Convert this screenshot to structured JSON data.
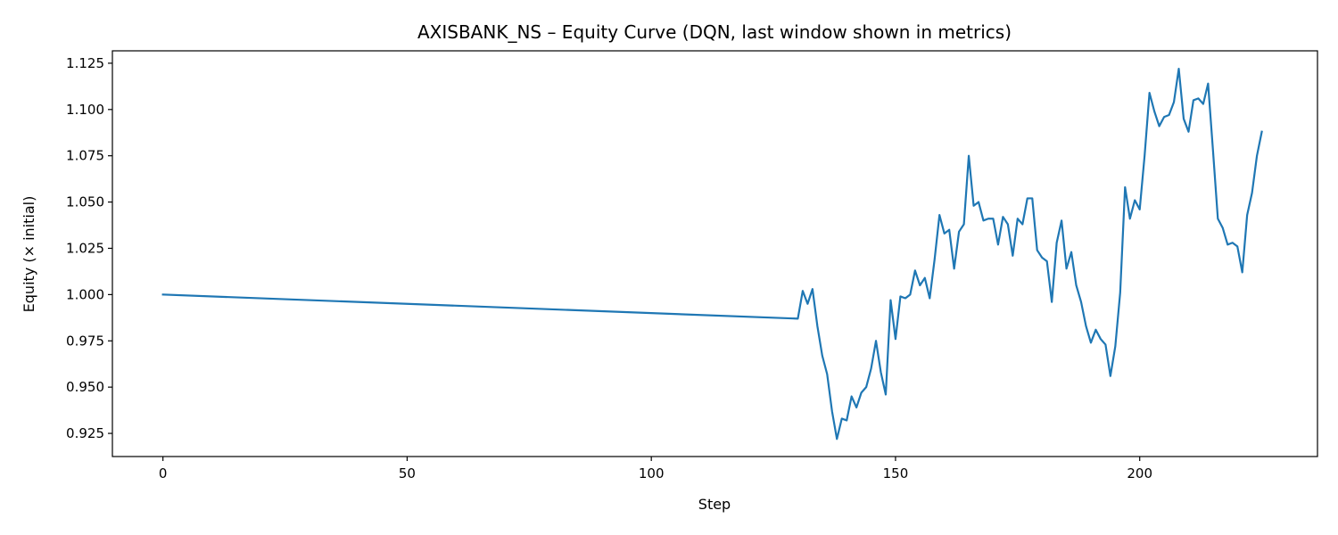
{
  "chart_data": {
    "type": "line",
    "title": "AXISBANK_NS – Equity Curve (DQN, last window shown in metrics)",
    "xlabel": "Step",
    "ylabel": "Equity (× initial)",
    "xlim": [
      -10.35,
      236.4
    ],
    "ylim": [
      0.9125,
      1.1317
    ],
    "xticks": [
      0,
      50,
      100,
      150,
      200
    ],
    "yticks": [
      0.925,
      0.95,
      0.975,
      1.0,
      1.025,
      1.05,
      1.075,
      1.1,
      1.125
    ],
    "xtick_labels": [
      "0",
      "50",
      "100",
      "150",
      "200"
    ],
    "ytick_labels": [
      "0.925",
      "0.950",
      "0.975",
      "1.000",
      "1.025",
      "1.050",
      "1.075",
      "1.100",
      "1.125"
    ],
    "grid": false,
    "legend": "none",
    "series": [
      {
        "color": "#1f77b4",
        "x": [
          0,
          130,
          131,
          132,
          133,
          134,
          135,
          136,
          137,
          138,
          139,
          140,
          141,
          142,
          143,
          144,
          145,
          146,
          147,
          148,
          149,
          150,
          151,
          152,
          153,
          154,
          155,
          156,
          157,
          158,
          159,
          160,
          161,
          162,
          163,
          164,
          165,
          166,
          167,
          168,
          169,
          170,
          171,
          172,
          173,
          174,
          175,
          176,
          177,
          178,
          179,
          180,
          181,
          182,
          183,
          184,
          185,
          186,
          187,
          188,
          189,
          190,
          191,
          192,
          193,
          194,
          195,
          196,
          197,
          198,
          199,
          200,
          201,
          202,
          203,
          204,
          205,
          206,
          207,
          208,
          209,
          210,
          211,
          212,
          213,
          214,
          215,
          216,
          217,
          218,
          219,
          220,
          221,
          222,
          223,
          224,
          225
        ],
        "y": [
          1.0,
          0.987,
          1.002,
          0.995,
          1.003,
          0.983,
          0.967,
          0.957,
          0.937,
          0.922,
          0.933,
          0.932,
          0.945,
          0.939,
          0.947,
          0.95,
          0.96,
          0.975,
          0.958,
          0.946,
          0.997,
          0.976,
          0.999,
          0.998,
          1.0,
          1.013,
          1.005,
          1.009,
          0.998,
          1.019,
          1.043,
          1.033,
          1.035,
          1.014,
          1.034,
          1.038,
          1.075,
          1.048,
          1.05,
          1.04,
          1.041,
          1.041,
          1.027,
          1.042,
          1.038,
          1.021,
          1.041,
          1.038,
          1.052,
          1.052,
          1.024,
          1.02,
          1.018,
          0.996,
          1.028,
          1.04,
          1.014,
          1.023,
          1.005,
          0.996,
          0.983,
          0.974,
          0.981,
          0.976,
          0.973,
          0.956,
          0.972,
          1.001,
          1.058,
          1.041,
          1.051,
          1.046,
          1.075,
          1.109,
          1.099,
          1.091,
          1.096,
          1.097,
          1.104,
          1.122,
          1.095,
          1.088,
          1.105,
          1.106,
          1.103,
          1.114,
          1.078,
          1.041,
          1.036,
          1.027,
          1.028,
          1.026,
          1.012,
          1.043,
          1.055,
          1.075,
          1.088
        ]
      }
    ]
  }
}
